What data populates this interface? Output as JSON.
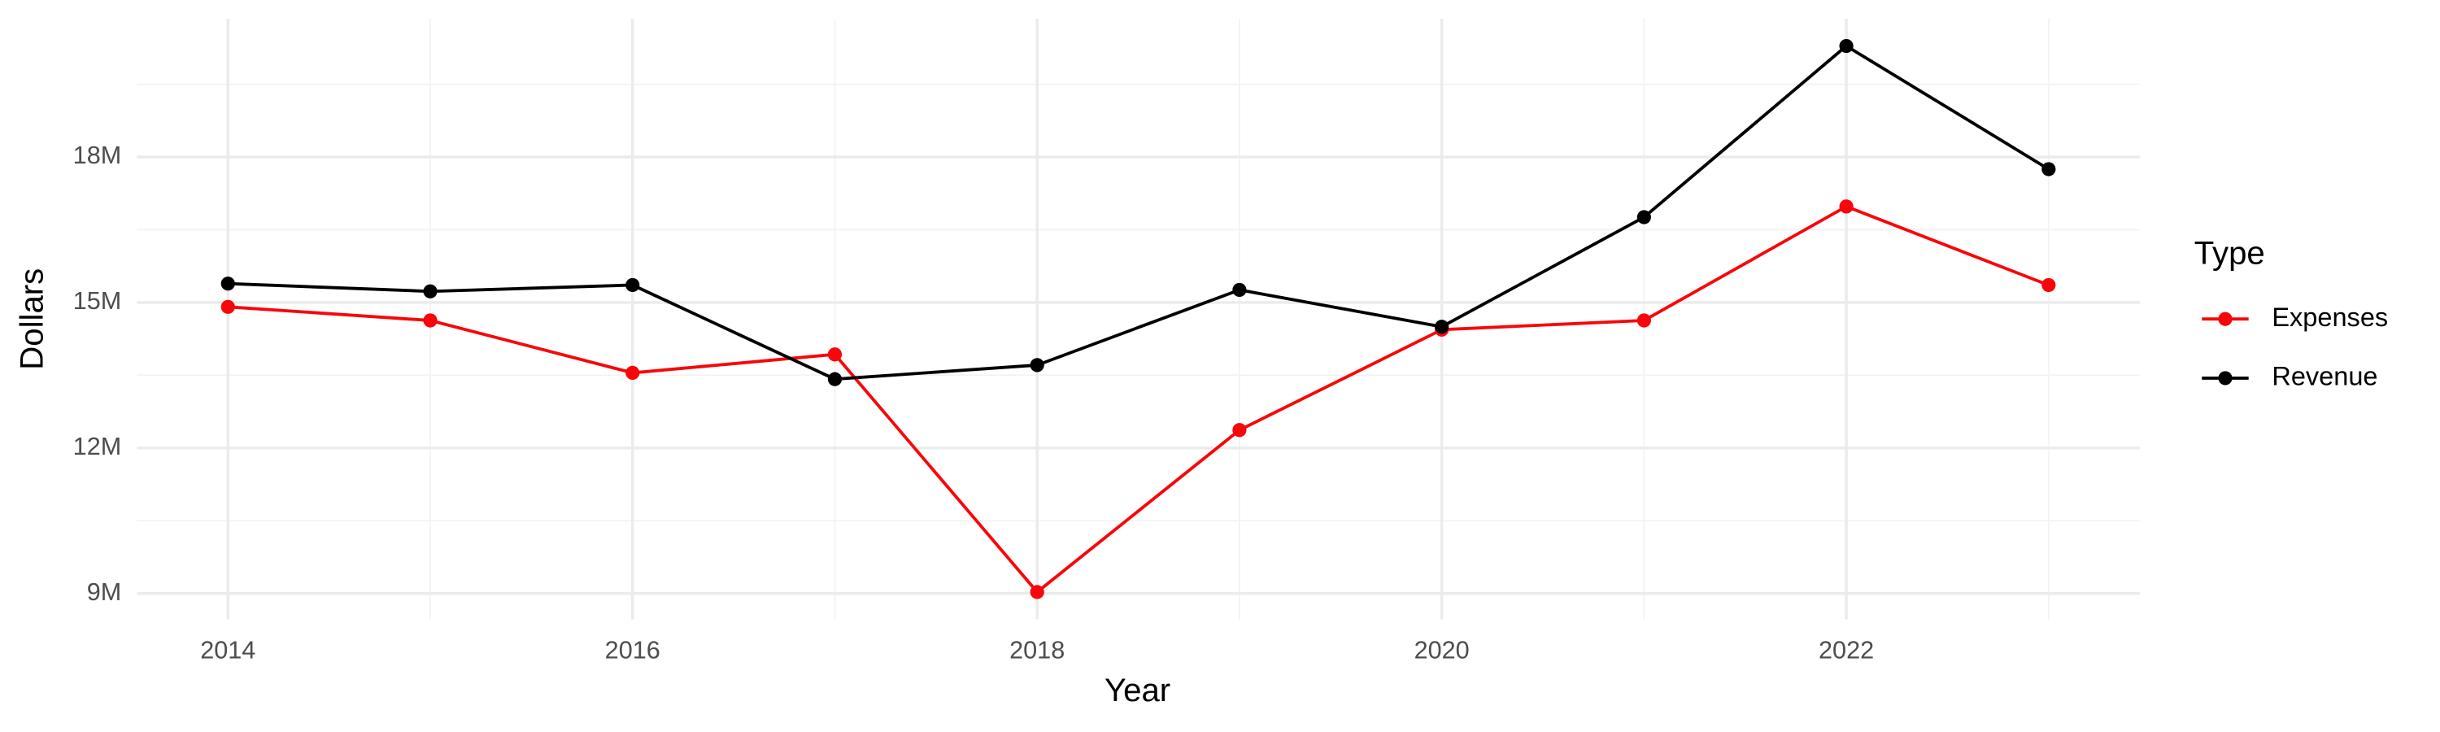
{
  "chart_data": {
    "type": "line",
    "x_label": "Year",
    "y_label": "Dollars",
    "legend_title": "Type",
    "legend_position": "right",
    "grid": true,
    "x": [
      2014,
      2015,
      2016,
      2017,
      2018,
      2019,
      2020,
      2021,
      2022,
      2023
    ],
    "series": [
      {
        "name": "Expenses",
        "color": "#f8060a",
        "values": [
          14910000,
          14630000,
          13550000,
          13930000,
          9030000,
          12370000,
          14440000,
          14630000,
          16980000,
          15360000
        ]
      },
      {
        "name": "Revenue",
        "color": "#000000",
        "values": [
          15390000,
          15230000,
          15360000,
          13420000,
          13710000,
          15260000,
          14500000,
          16760000,
          20290000,
          17750000
        ]
      }
    ],
    "xlim": [
      2013.55,
      2023.45
    ],
    "xticks": [
      2014,
      2016,
      2018,
      2020,
      2022
    ],
    "ylim": [
      8467000,
      20853000
    ],
    "yticks": [
      {
        "value": 9000000,
        "label": "9M"
      },
      {
        "value": 12000000,
        "label": "12M"
      },
      {
        "value": 15000000,
        "label": "15M"
      },
      {
        "value": 18000000,
        "label": "18M"
      }
    ]
  }
}
